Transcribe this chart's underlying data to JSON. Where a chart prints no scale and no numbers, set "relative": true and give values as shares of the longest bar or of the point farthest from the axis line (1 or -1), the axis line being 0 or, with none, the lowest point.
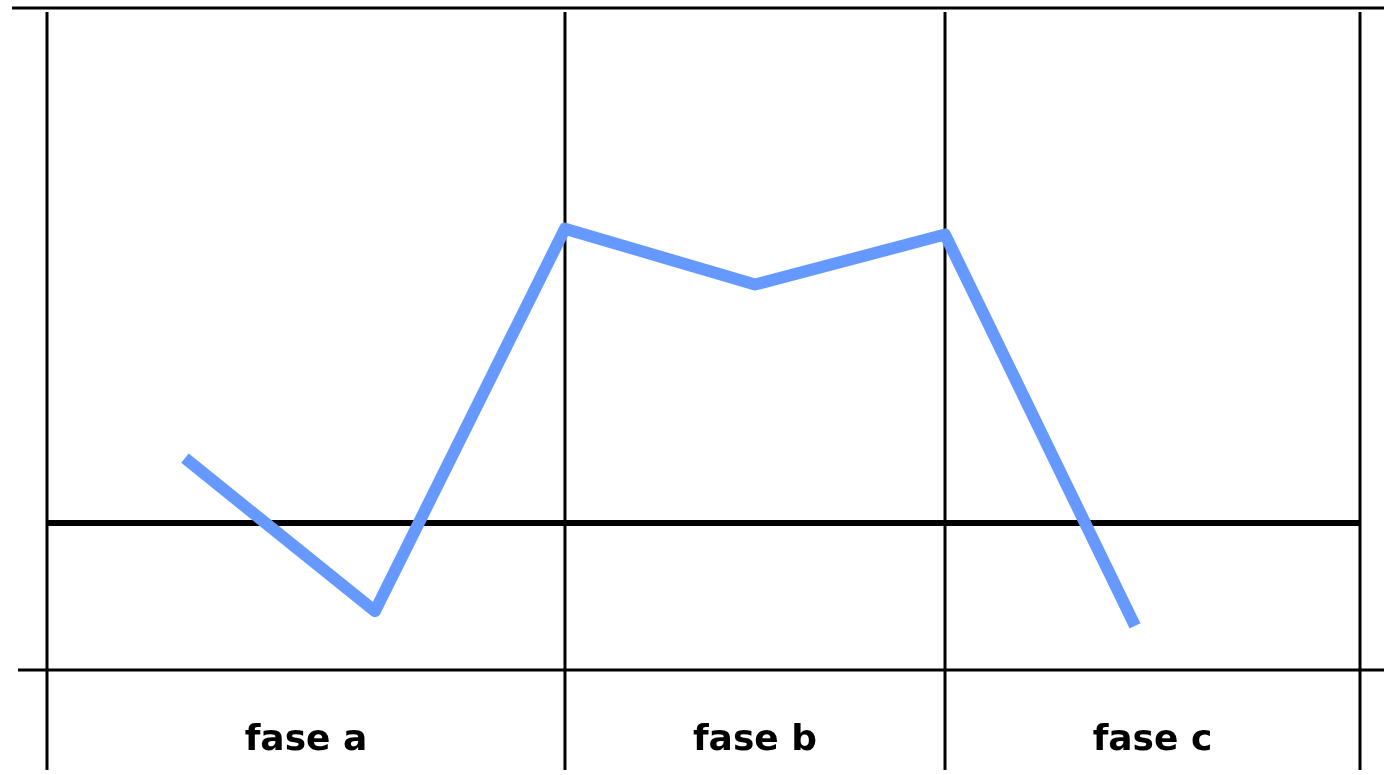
{
  "chart_data": {
    "type": "line",
    "relative": true,
    "categories": [
      null,
      null,
      null,
      null,
      null,
      null
    ],
    "values": [
      0.22,
      -0.3,
      1,
      0.81,
      0.98,
      -0.35
    ],
    "color": "#6699ff",
    "marker": "none",
    "line_style": "solid",
    "legend": false,
    "grid": false,
    "annotations": [
      "fase  a",
      "fase  b",
      "fase  c"
    ]
  }
}
